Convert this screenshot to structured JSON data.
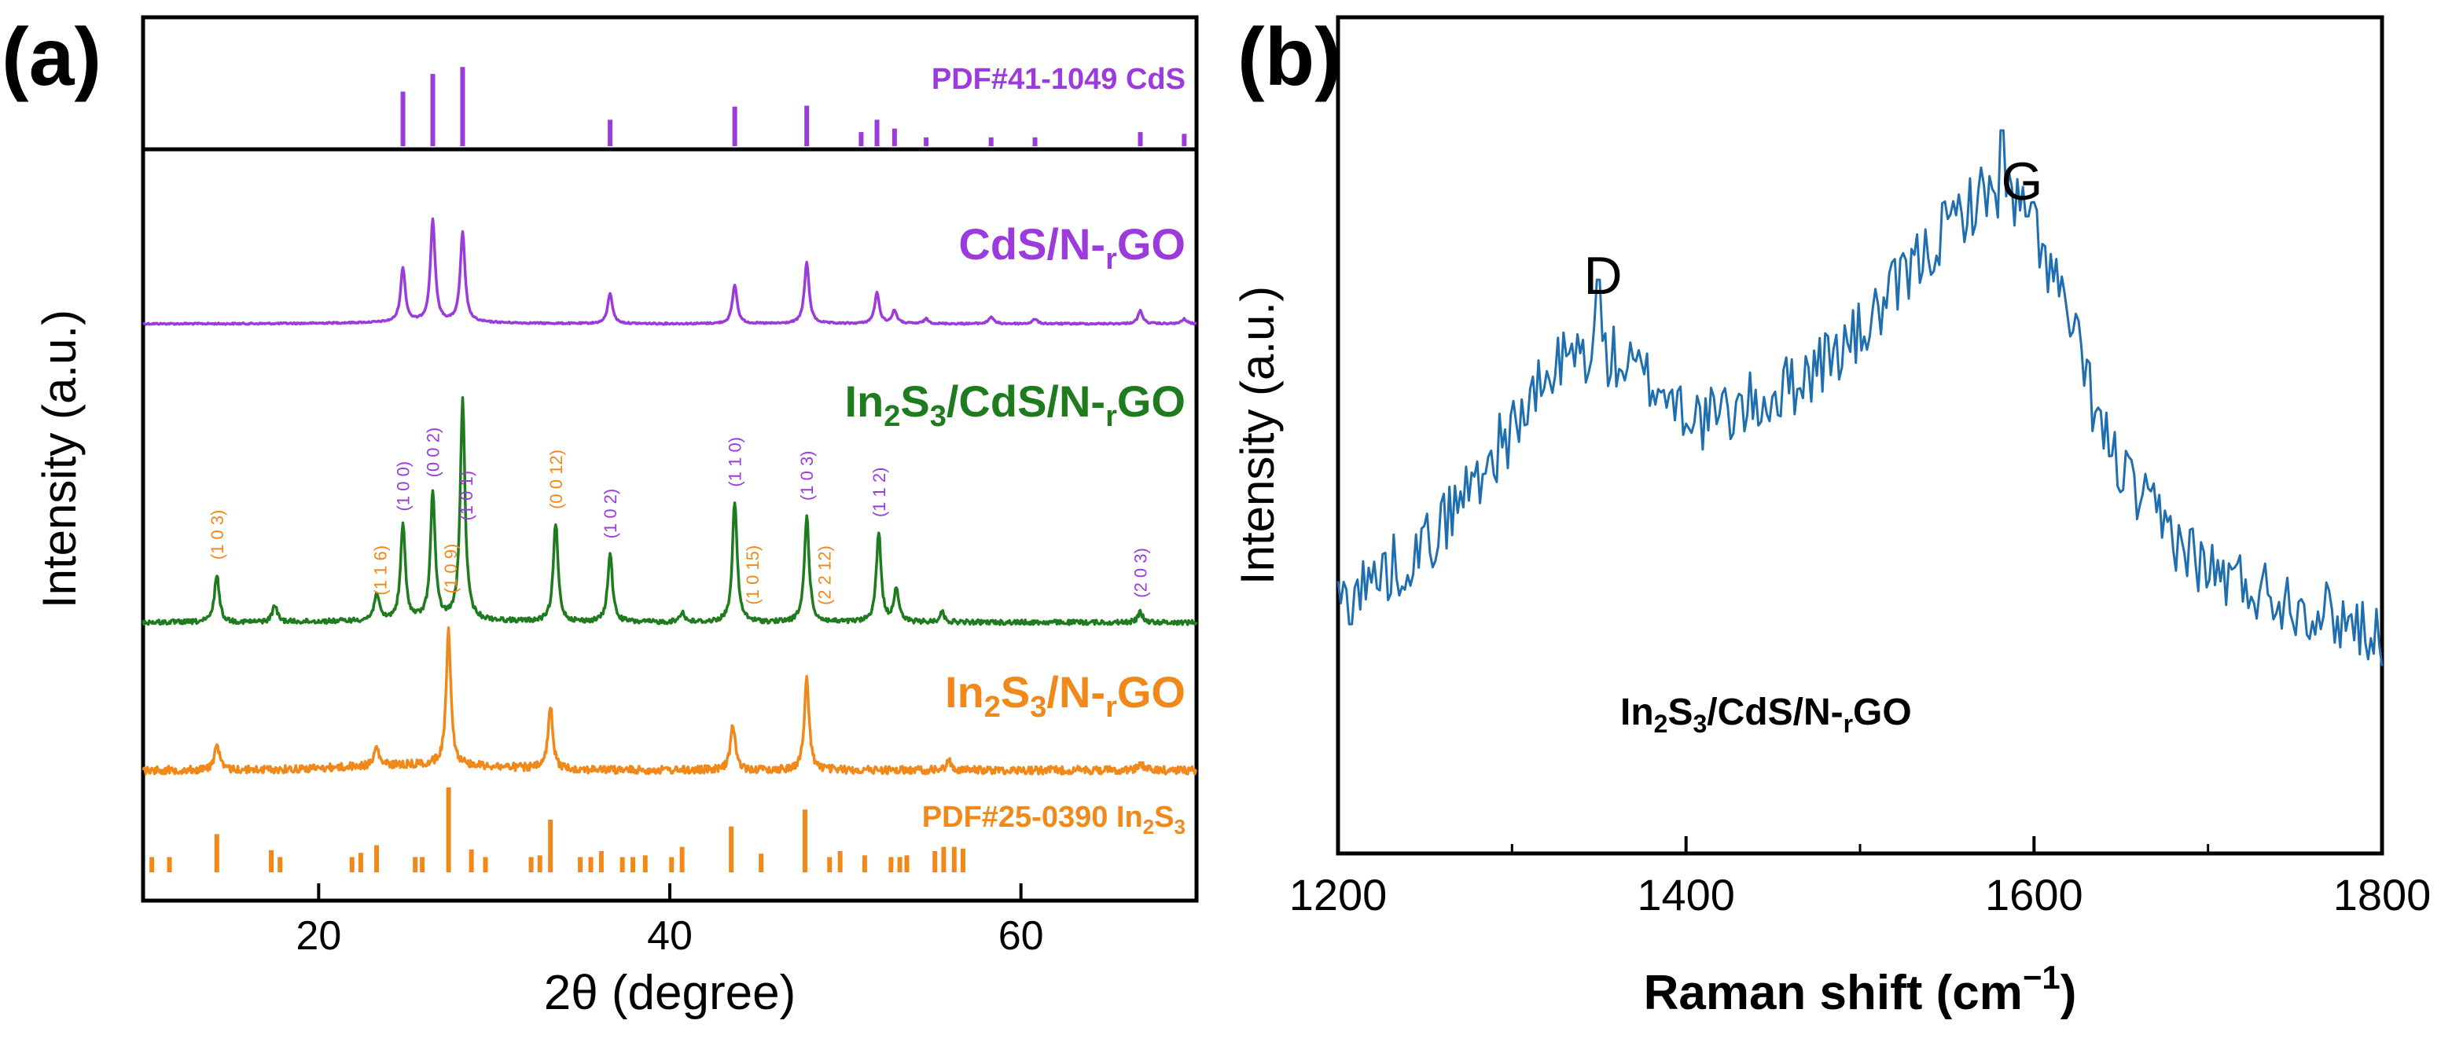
{
  "colors": {
    "purple": "#9b3bdc",
    "green": "#1e7b1e",
    "orange": "#f0891a",
    "blue": "#1f6fb0",
    "black": "#111111"
  },
  "chart_data": [
    {
      "type": "line",
      "panel_label": "(a)",
      "title": "",
      "xlabel": "2θ (degree)",
      "ylabel": "Intensity (a.u.)",
      "xlim": [
        10,
        70
      ],
      "xticks": [
        20,
        40,
        60
      ],
      "xtick_labels": [
        "20",
        "40",
        "60"
      ],
      "reference_patterns": [
        {
          "name": "PDF#41-1049 CdS",
          "name_parts": [
            "PDF#41-1049 CdS"
          ],
          "color_key": "purple",
          "positions": [
            24.8,
            26.5,
            28.2,
            36.6,
            43.7,
            47.8,
            50.9,
            51.8,
            52.8,
            54.6,
            58.3,
            60.8,
            66.8,
            69.3
          ],
          "intensities": [
            0.62,
            0.82,
            0.9,
            0.3,
            0.45,
            0.46,
            0.16,
            0.3,
            0.2,
            0.1,
            0.1,
            0.1,
            0.16,
            0.14
          ]
        },
        {
          "name": "PDF#25-0390 In2S3",
          "name_parts": [
            "PDF#25-0390 In",
            "2",
            "S",
            "3"
          ],
          "color_key": "orange",
          "positions": [
            10.5,
            11.5,
            14.2,
            17.3,
            17.8,
            21.9,
            22.4,
            23.3,
            25.5,
            25.9,
            27.4,
            28.7,
            29.5,
            32.1,
            32.6,
            33.2,
            34.9,
            35.5,
            36.1,
            37.3,
            37.9,
            38.6,
            40.1,
            40.7,
            43.5,
            45.2,
            47.7,
            49.1,
            49.7,
            51.1,
            52.6,
            53.1,
            53.5,
            55.1,
            55.6,
            56.2,
            56.7
          ],
          "intensities": [
            0.18,
            0.18,
            0.45,
            0.26,
            0.18,
            0.18,
            0.23,
            0.32,
            0.18,
            0.18,
            1.0,
            0.27,
            0.18,
            0.18,
            0.2,
            0.62,
            0.18,
            0.18,
            0.25,
            0.18,
            0.18,
            0.2,
            0.18,
            0.3,
            0.54,
            0.22,
            0.74,
            0.18,
            0.25,
            0.2,
            0.18,
            0.18,
            0.2,
            0.25,
            0.3,
            0.3,
            0.28
          ]
        }
      ],
      "series": [
        {
          "name": "CdS/N-rGO",
          "name_parts": [
            "CdS/N-",
            "r",
            "GO"
          ],
          "color_key": "purple",
          "peaks": [
            [
              24.8,
              0.46
            ],
            [
              26.5,
              0.87
            ],
            [
              28.2,
              0.76
            ],
            [
              36.6,
              0.26
            ],
            [
              43.7,
              0.33
            ],
            [
              47.8,
              0.52
            ],
            [
              51.8,
              0.26
            ],
            [
              52.8,
              0.11
            ],
            [
              54.6,
              0.04
            ],
            [
              58.3,
              0.06
            ],
            [
              60.8,
              0.04
            ],
            [
              66.8,
              0.11
            ],
            [
              69.3,
              0.04
            ]
          ]
        },
        {
          "name": "In2S3/CdS/N-rGO",
          "name_parts": [
            "In",
            "2",
            "S",
            "3",
            "/CdS/N-",
            "r",
            "GO"
          ],
          "color_key": "green",
          "peaks": [
            [
              14.2,
              0.28
            ],
            [
              17.5,
              0.1
            ],
            [
              23.3,
              0.16
            ],
            [
              24.8,
              0.55
            ],
            [
              26.5,
              0.74
            ],
            [
              28.2,
              1.28
            ],
            [
              33.5,
              0.57
            ],
            [
              36.6,
              0.4
            ],
            [
              40.7,
              0.06
            ],
            [
              43.7,
              0.7
            ],
            [
              47.8,
              0.62
            ],
            [
              51.9,
              0.52
            ],
            [
              52.9,
              0.2
            ],
            [
              55.5,
              0.06
            ],
            [
              66.8,
              0.06
            ]
          ]
        },
        {
          "name": "In2S3/N-rGO",
          "name_parts": [
            "In",
            "2",
            "S",
            "3",
            "/N-",
            "r",
            "GO"
          ],
          "color_key": "orange",
          "peaks": [
            [
              14.2,
              0.18
            ],
            [
              23.3,
              0.12
            ],
            [
              27.4,
              0.88
            ],
            [
              33.2,
              0.4
            ],
            [
              43.6,
              0.3
            ],
            [
              47.8,
              0.6
            ],
            [
              55.9,
              0.06
            ],
            [
              66.8,
              0.05
            ]
          ]
        }
      ],
      "peak_annotations": [
        {
          "label": "(1 0 3)",
          "x": 14.2,
          "color_key": "orange"
        },
        {
          "label": "(1 1 6)",
          "x": 23.5,
          "color_key": "orange"
        },
        {
          "label": "(1 0 0)",
          "x": 24.8,
          "color_key": "purple"
        },
        {
          "label": "(0 0 2)",
          "x": 26.5,
          "color_key": "purple"
        },
        {
          "label": "(1 0 9)",
          "x": 27.5,
          "color_key": "orange"
        },
        {
          "label": "(1 0 1)",
          "x": 28.4,
          "color_key": "purple"
        },
        {
          "label": "(0 0 12)",
          "x": 33.5,
          "color_key": "orange"
        },
        {
          "label": "(1 0 2)",
          "x": 36.6,
          "color_key": "purple"
        },
        {
          "label": "(1 1 0)",
          "x": 43.7,
          "color_key": "purple"
        },
        {
          "label": "(1 0 15)",
          "x": 44.7,
          "color_key": "orange"
        },
        {
          "label": "(1 0 3)",
          "x": 47.8,
          "color_key": "purple"
        },
        {
          "label": "(2 2 12)",
          "x": 48.8,
          "color_key": "orange"
        },
        {
          "label": "(1 1 2)",
          "x": 51.9,
          "color_key": "purple"
        },
        {
          "label": "(2 0 3)",
          "x": 66.8,
          "color_key": "purple"
        }
      ]
    },
    {
      "type": "line",
      "panel_label": "(b)",
      "title": "",
      "xlabel": "Raman shift (cm",
      "xlabel_sup": "−1",
      "xlabel_end": ")",
      "ylabel": "Intensity (a.u.)",
      "xlim": [
        1200,
        1800
      ],
      "xticks": [
        1200,
        1400,
        1600,
        1800
      ],
      "xtick_labels": [
        "1200",
        "1400",
        "1600",
        "1800"
      ],
      "sample_label_parts": [
        "In",
        "2",
        "S",
        "3",
        "/CdS/N-",
        "r",
        "GO"
      ],
      "color_key": "blue",
      "bands": [
        {
          "label": "D",
          "x": 1350
        },
        {
          "label": "G",
          "x": 1582
        }
      ],
      "series": [
        {
          "name": "In2S3/CdS/N-rGO",
          "color_key": "blue",
          "x": [
            1200,
            1250,
            1300,
            1330,
            1350,
            1380,
            1410,
            1450,
            1500,
            1540,
            1560,
            1580,
            1600,
            1620,
            1640,
            1660,
            1700,
            1750,
            1800
          ],
          "y": [
            0.32,
            0.39,
            0.54,
            0.63,
            0.64,
            0.6,
            0.55,
            0.58,
            0.66,
            0.77,
            0.82,
            0.85,
            0.8,
            0.68,
            0.53,
            0.45,
            0.36,
            0.32,
            0.28
          ]
        }
      ]
    }
  ]
}
